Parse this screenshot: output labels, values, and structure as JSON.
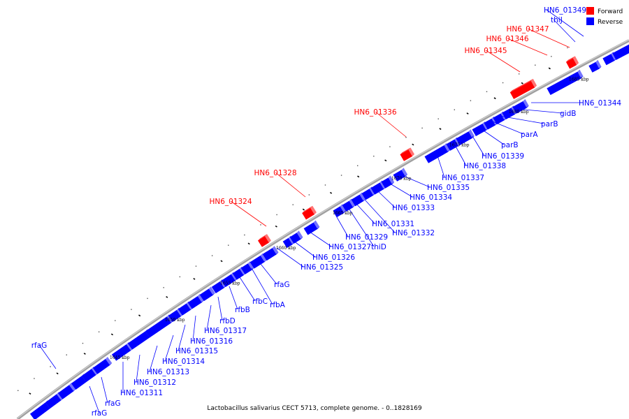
{
  "caption": "Lactobacillus salivarius CECT 5713, complete genome. - 0..1828169",
  "legend": [
    {
      "label": "Forward",
      "color": "#ff0000"
    },
    {
      "label": "Reverse",
      "color": "#0000ff"
    }
  ],
  "colors": {
    "forward": "#ff0000",
    "reverse": "#0000ff",
    "backbone": "#999999"
  },
  "ticks": [
    "1645 kbp",
    "1650 kbp",
    "1655 kbp",
    "1660 kbp",
    "1665 kbp",
    "1670 kbp",
    "1675 kbp",
    "1680 kbp",
    "1685 kbp"
  ],
  "forward_labels": [
    "HN6_01324",
    "HN6_01328",
    "HN6_01336",
    "HN6_01345",
    "HN6_01346",
    "HN6_01347"
  ],
  "reverse_labels": [
    "rfaG",
    "rfaG",
    "rfaG",
    "HN6_01311",
    "HN6_01312",
    "HN6_01313",
    "HN6_01314",
    "HN6_01315",
    "HN6_01316",
    "HN6_01317",
    "rfbD",
    "rfbB",
    "rfbC",
    "rfbA",
    "rfaG",
    "HN6_01325",
    "HN6_01326",
    "HN6_01327",
    "thiD",
    "HN6_01329",
    "HN6_01331",
    "HN6_01332",
    "HN6_01333",
    "HN6_01334",
    "HN6_01335",
    "HN6_01337",
    "HN6_01338",
    "HN6_01339",
    "parB",
    "parA",
    "parB",
    "gidB",
    "HN6_01344",
    "thiJ",
    "HN6_01349"
  ]
}
